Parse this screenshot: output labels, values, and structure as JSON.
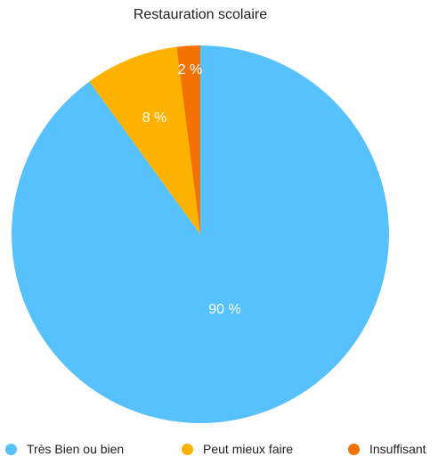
{
  "chart_data": {
    "type": "pie",
    "title": "Restauration scolaire",
    "categories": [
      "Très Bien ou bien",
      "Peut mieux faire",
      "Insuffisant"
    ],
    "values": [
      90,
      8,
      2
    ],
    "labels": [
      "90 %",
      "8 %",
      "2 %"
    ],
    "colors": [
      "#57C1FD",
      "#FDB200",
      "#F37201"
    ],
    "start": "top",
    "direction": "clockwise",
    "legend": "bottom"
  }
}
